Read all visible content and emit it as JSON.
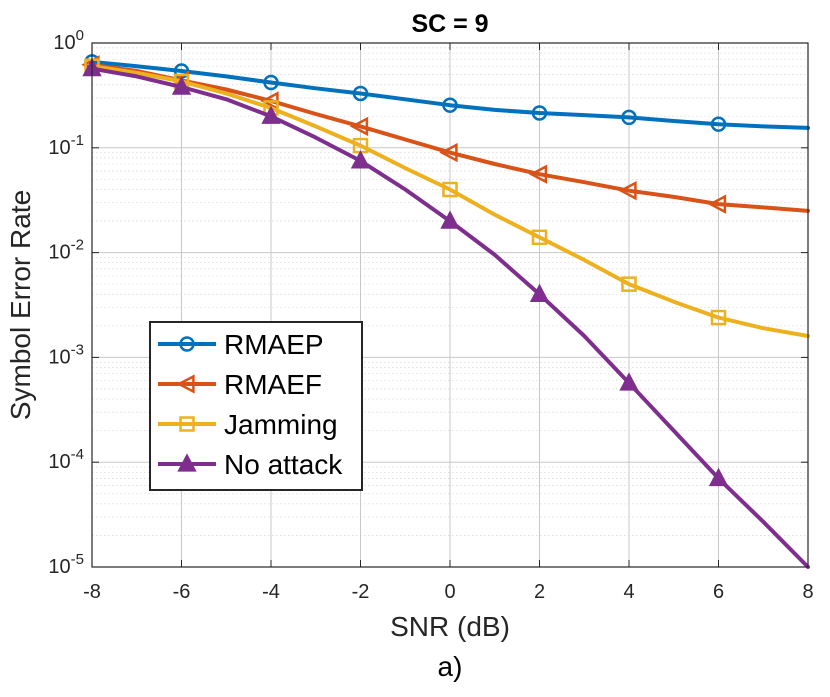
{
  "chart_data": {
    "type": "line",
    "title": "SC = 9",
    "xlabel": "SNR (dB)",
    "ylabel": "Symbol Error Rate",
    "caption": "a)",
    "xlim": [
      -8,
      8
    ],
    "ylim": [
      1e-05,
      1
    ],
    "yscale": "log",
    "grid": true,
    "legend_position": "bottom-left",
    "xticks": [
      -8,
      -6,
      -4,
      -2,
      0,
      2,
      4,
      6,
      8
    ],
    "xtick_labels": [
      "-8",
      "-6",
      "-4",
      "-2",
      "0",
      "2",
      "4",
      "6",
      "8"
    ],
    "yticks": [
      {
        "value": 1,
        "base": "10",
        "exp": "0"
      },
      {
        "value": 0.1,
        "base": "10",
        "exp": "-1"
      },
      {
        "value": 0.01,
        "base": "10",
        "exp": "-2"
      },
      {
        "value": 0.001,
        "base": "10",
        "exp": "-3"
      },
      {
        "value": 0.0001,
        "base": "10",
        "exp": "-4"
      },
      {
        "value": 1e-05,
        "base": "10",
        "exp": "-5"
      }
    ],
    "series": [
      {
        "name": "RMAEP",
        "color": "#0072BD",
        "marker": "circle",
        "x": [
          -8,
          -7,
          -6,
          -5,
          -4,
          -3,
          -2,
          -1,
          0,
          1,
          2,
          3,
          4,
          5,
          6,
          7,
          8
        ],
        "y": [
          0.66,
          0.6,
          0.54,
          0.48,
          0.42,
          0.37,
          0.33,
          0.29,
          0.255,
          0.23,
          0.215,
          0.205,
          0.195,
          0.18,
          0.168,
          0.16,
          0.155
        ],
        "marker_x": [
          -8,
          -6,
          -4,
          -2,
          0,
          2,
          4,
          6
        ]
      },
      {
        "name": "RMAEF",
        "color": "#D95319",
        "marker": "triangle-left",
        "x": [
          -8,
          -7,
          -6,
          -5,
          -4,
          -3,
          -2,
          -1,
          0,
          1,
          2,
          3,
          4,
          5,
          6,
          7,
          8
        ],
        "y": [
          0.62,
          0.54,
          0.44,
          0.36,
          0.28,
          0.21,
          0.16,
          0.12,
          0.09,
          0.07,
          0.056,
          0.047,
          0.039,
          0.034,
          0.029,
          0.027,
          0.025
        ],
        "marker_x": [
          -8,
          -6,
          -4,
          -2,
          0,
          2,
          4,
          6
        ]
      },
      {
        "name": "Jamming",
        "color": "#EDB120",
        "marker": "square",
        "x": [
          -8,
          -7,
          -6,
          -5,
          -4,
          -3,
          -2,
          -1,
          0,
          1,
          2,
          3,
          4,
          5,
          6,
          7,
          8
        ],
        "y": [
          0.6,
          0.52,
          0.43,
          0.33,
          0.24,
          0.16,
          0.105,
          0.064,
          0.04,
          0.023,
          0.014,
          0.0085,
          0.005,
          0.0034,
          0.0024,
          0.0019,
          0.0016
        ],
        "marker_x": [
          -8,
          -6,
          -4,
          -2,
          0,
          2,
          4,
          6
        ]
      },
      {
        "name": "No attack",
        "color": "#7E2F8E",
        "marker": "triangle-up",
        "x": [
          -8,
          -7,
          -6,
          -5,
          -4,
          -3,
          -2,
          -1,
          0,
          1,
          2,
          3,
          4,
          5,
          6,
          7,
          8
        ],
        "y": [
          0.57,
          0.48,
          0.38,
          0.29,
          0.2,
          0.125,
          0.075,
          0.04,
          0.02,
          0.0095,
          0.004,
          0.0016,
          0.00057,
          0.0002,
          7e-05,
          2.7e-05,
          1e-05
        ],
        "marker_x": [
          -8,
          -6,
          -4,
          -2,
          0,
          2,
          4,
          6
        ]
      }
    ]
  }
}
